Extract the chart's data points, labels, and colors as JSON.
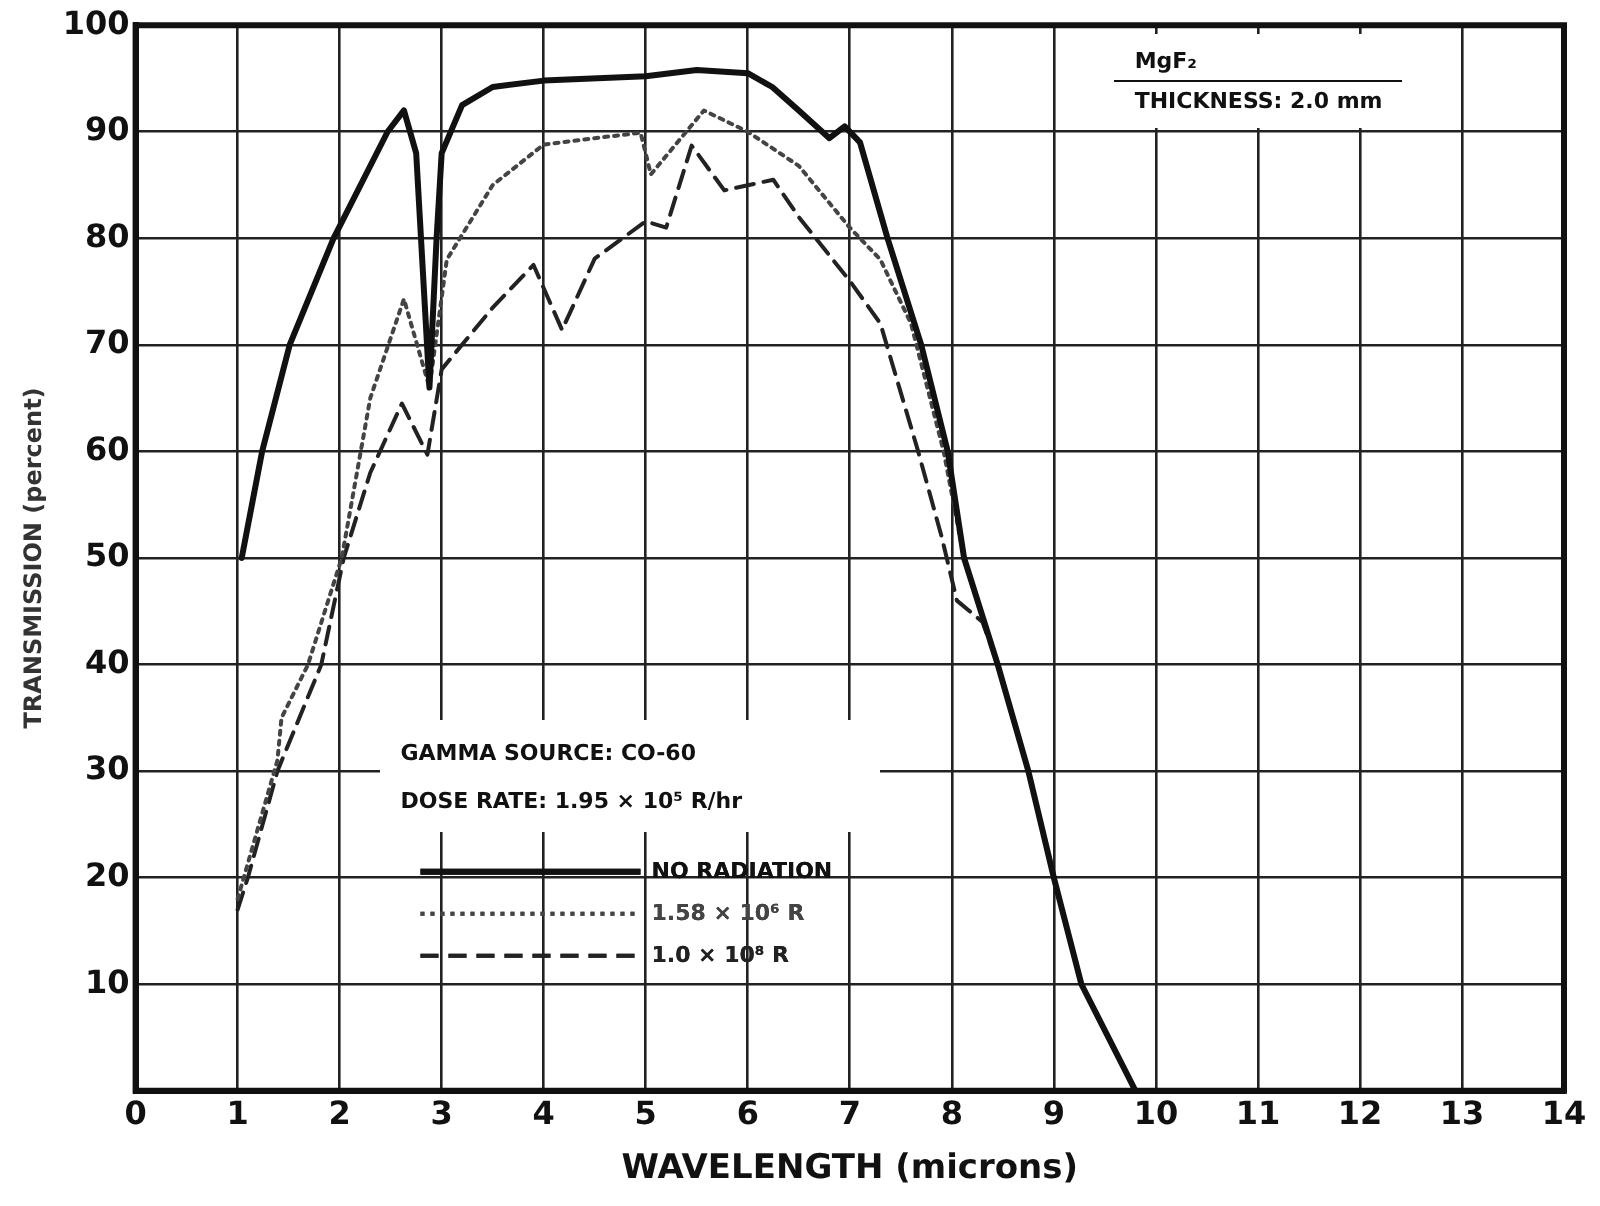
{
  "chart_data": {
    "type": "line",
    "xlabel": "WAVELENGTH (microns)",
    "ylabel": "TRANSMISSION (percent)",
    "xlim": [
      0,
      14
    ],
    "xticks": [
      0,
      1,
      2,
      3,
      4,
      5,
      6,
      7,
      8,
      9,
      10,
      11,
      12,
      13,
      14
    ],
    "ylim": [
      0,
      100
    ],
    "yticks": [
      {
        "value": 0,
        "label": null
      },
      10,
      20,
      30,
      40,
      50,
      60,
      70,
      80,
      90,
      100
    ],
    "grid": true,
    "legend": "bottom left",
    "marker": "none",
    "annotations": [
      "MgF₂",
      "THICKNESS: 2.0 mm",
      "GAMMA SOURCE: CO-60",
      "DOSE RATE: 1.95 × 10⁵ R/hr"
    ],
    "series": [
      {
        "name": "NO RADIATION",
        "color": "#111111",
        "line_style": "solid",
        "x": [
          1.04,
          1.24,
          1.51,
          1.94,
          2.47,
          2.63,
          2.75,
          2.88,
          2.95,
          3.0,
          3.2,
          3.5,
          4,
          5,
          5.5,
          6,
          6.24,
          6.5,
          6.8,
          6.95,
          7.1,
          7.37,
          7.7,
          7.96,
          8.12,
          8.45,
          8.75,
          9.0,
          9.27,
          9.8
        ],
        "values": [
          50,
          60,
          70,
          80,
          90,
          92,
          88,
          66,
          80,
          88,
          92.5,
          94.2,
          94.8,
          95.2,
          95.8,
          95.5,
          94.2,
          92,
          89.4,
          90.5,
          89,
          80,
          70,
          60,
          50,
          40,
          30,
          20,
          10,
          0
        ]
      },
      {
        "name": "1.58 × 10⁶ R",
        "color": "#444444",
        "line_style": "dotted",
        "x": [
          1.0,
          1.39,
          1.43,
          1.69,
          2.02,
          2.3,
          2.63,
          2.88,
          3.05,
          3.5,
          4,
          4.5,
          4.95,
          5.05,
          5.57,
          6,
          6.5,
          7,
          7.3,
          7.6,
          7.92,
          8.12,
          8.45,
          8.75,
          9.0,
          9.27,
          9.8
        ],
        "values": [
          18,
          31,
          35,
          40,
          50,
          65,
          74.3,
          66,
          78,
          85,
          88.8,
          89.4,
          89.9,
          86,
          92,
          90,
          86.8,
          81,
          78,
          72,
          60,
          50,
          40,
          30,
          20,
          10,
          0
        ]
      },
      {
        "name": "1.0 × 10⁸ R",
        "color": "#222222",
        "line_style": "dashed",
        "x": [
          1.0,
          1.1,
          1.39,
          1.82,
          2.04,
          2.3,
          2.61,
          2.86,
          3.0,
          3.5,
          3.9,
          4.18,
          4.5,
          5,
          5.2,
          5.45,
          5.77,
          6.25,
          6.5,
          7,
          7.3,
          7.67,
          7.9,
          8.05,
          8.3,
          8.45,
          8.75,
          9.0,
          9.27,
          9.8
        ],
        "values": [
          17,
          20,
          30,
          40,
          50,
          58,
          64.5,
          59.7,
          67.7,
          73.5,
          77.5,
          71.4,
          78.1,
          81.6,
          81,
          88.7,
          84.5,
          85.5,
          82,
          76,
          72,
          60,
          52,
          46,
          44,
          40,
          30,
          20,
          10,
          0
        ]
      }
    ]
  }
}
